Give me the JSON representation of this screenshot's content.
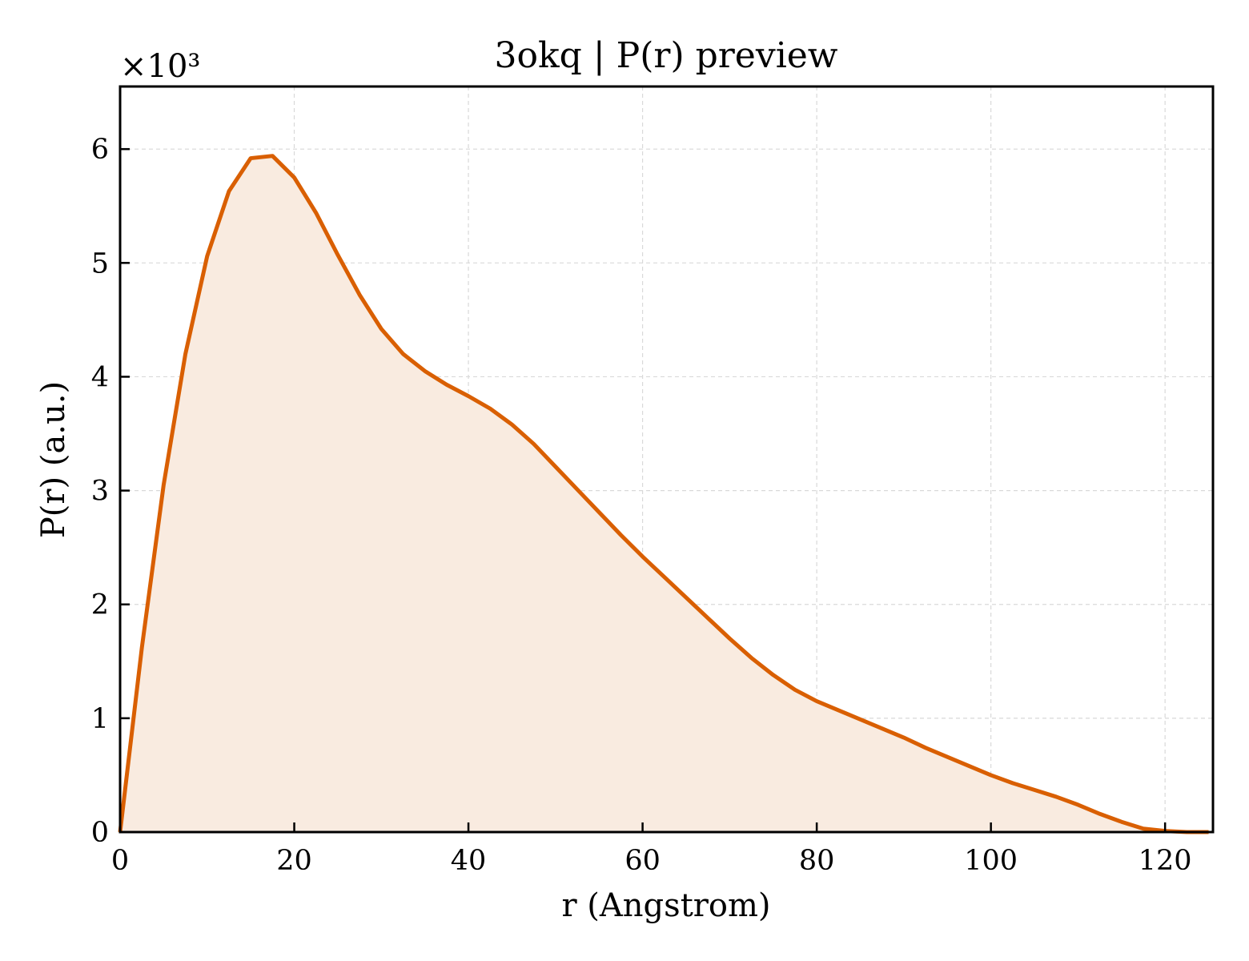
{
  "chart_data": {
    "type": "area",
    "title": "3okq | P(r) preview",
    "xlabel": "r (Angstrom)",
    "ylabel": "P(r) (a.u.)",
    "y_multiplier_label": "×10³",
    "xlim": [
      0,
      125.5
    ],
    "ylim": [
      0,
      6.55
    ],
    "y_scale_factor": 1000,
    "x_ticks": [
      0,
      20,
      40,
      60,
      80,
      100,
      120
    ],
    "y_ticks": [
      0,
      1,
      2,
      3,
      4,
      5,
      6
    ],
    "grid": true,
    "line_color": "#d95f02",
    "fill_color": "#f9ebe0",
    "series": [
      {
        "x": [
          0,
          2.5,
          5,
          7.5,
          10,
          12.5,
          15,
          17.5,
          20,
          22.5,
          25,
          27.5,
          30,
          32.5,
          35,
          37.5,
          40,
          42.5,
          45,
          47.5,
          50,
          52.5,
          55,
          57.5,
          60,
          62.5,
          65,
          67.5,
          70,
          72.5,
          75,
          77.5,
          80,
          82.5,
          85,
          87.5,
          90,
          92.5,
          95,
          97.5,
          100,
          102.5,
          105,
          107.5,
          110,
          112.5,
          115,
          117.5,
          120,
          122.5,
          125
        ],
        "y": [
          0,
          1.62,
          3.05,
          4.2,
          5.06,
          5.63,
          5.92,
          5.94,
          5.75,
          5.44,
          5.07,
          4.72,
          4.42,
          4.2,
          4.05,
          3.93,
          3.83,
          3.72,
          3.58,
          3.41,
          3.21,
          3.01,
          2.81,
          2.61,
          2.42,
          2.24,
          2.06,
          1.88,
          1.7,
          1.53,
          1.38,
          1.25,
          1.15,
          1.07,
          0.99,
          0.91,
          0.83,
          0.74,
          0.66,
          0.58,
          0.5,
          0.43,
          0.37,
          0.31,
          0.24,
          0.16,
          0.09,
          0.03,
          0.01,
          0,
          0
        ]
      }
    ]
  }
}
